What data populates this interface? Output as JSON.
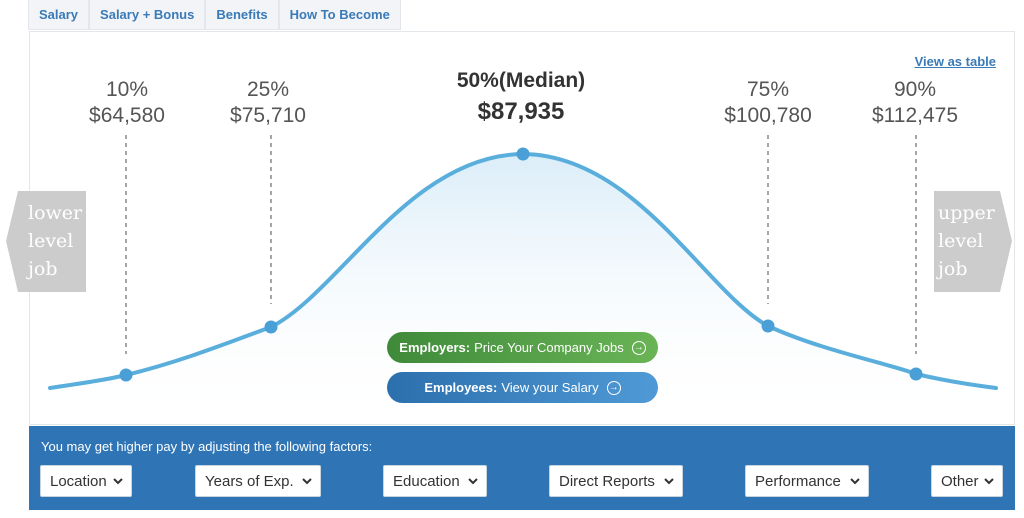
{
  "tabs": [
    "Salary",
    "Salary + Bonus",
    "Benefits",
    "How To Become"
  ],
  "view_table": "View as table",
  "percentiles": [
    {
      "label": "10%",
      "value": "$64,580"
    },
    {
      "label": "25%",
      "value": "$75,710"
    },
    {
      "label": "50%(Median)",
      "value": "$87,935"
    },
    {
      "label": "75%",
      "value": "$100,780"
    },
    {
      "label": "90%",
      "value": "$112,475"
    }
  ],
  "lower_job": [
    "lower",
    "level",
    "job"
  ],
  "upper_job": [
    "upper",
    "level",
    "job"
  ],
  "buttons": {
    "employers_bold": "Employers:",
    "employers_text": "Price Your Company Jobs",
    "employees_bold": "Employees:",
    "employees_text": "View your Salary"
  },
  "factors": {
    "title": "You may get higher pay by adjusting the following factors:",
    "selects": [
      "Location",
      "Years of Exp.",
      "Education",
      "Direct Reports",
      "Performance",
      "Other"
    ]
  },
  "colors": {
    "curve": "#5aaedc",
    "green_button": "#4f9c45",
    "blue_button": "#3a85c6",
    "factors_bar": "#2f74b5",
    "side_arrow": "#cccccc"
  },
  "icons": [
    "arrow-right-circle-icon",
    "chevron-down-icon"
  ]
}
